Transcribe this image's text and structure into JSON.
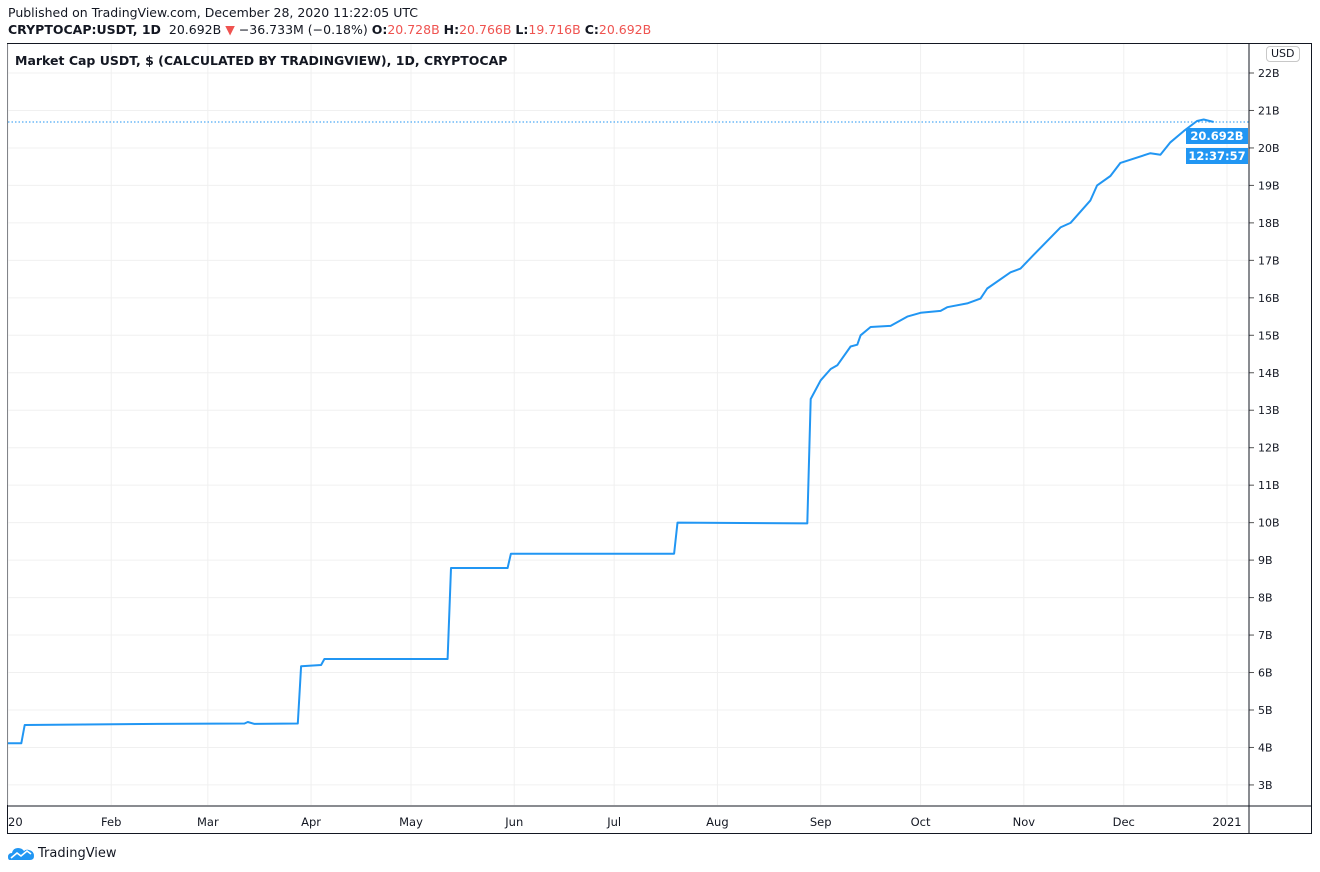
{
  "header": {
    "published": "Published on TradingView.com, December 28, 2020 11:22:05 UTC",
    "symbol": "CRYPTOCAP:USDT, 1D",
    "last": "20.692B",
    "change": "−36.733M (−0.18%)",
    "o_label": "O:",
    "o": "20.728B",
    "h_label": "H:",
    "h": "20.766B",
    "l_label": "L:",
    "l": "19.716B",
    "c_label": "C:",
    "c": "20.692B",
    "direction_icon": "triangle-down-icon"
  },
  "chart": {
    "title": "Market Cap USDT, $ (CALCULATED BY TRADINGVIEW), 1D, CRYPTOCAP",
    "currency_button": "USD",
    "price_label": "20.692B",
    "countdown_label": "12:37:57"
  },
  "footer": {
    "brand": "TradingView"
  },
  "colors": {
    "line": "#2196f3",
    "grid": "#f0f3fa",
    "down": "#ef5350"
  },
  "chart_data": {
    "type": "line",
    "title": "Market Cap USDT, $ (CALCULATED BY TRADINGVIEW), 1D, CRYPTOCAP",
    "ylim": [
      2.5,
      22.5
    ],
    "y_unit": "B",
    "y_ticks": [
      "3B",
      "4B",
      "5B",
      "6B",
      "7B",
      "8B",
      "9B",
      "10B",
      "11B",
      "12B",
      "13B",
      "14B",
      "15B",
      "16B",
      "17B",
      "18B",
      "19B",
      "20B",
      "21B",
      "22B"
    ],
    "x_ticks": [
      {
        "date": "2020-01-01",
        "label": "20"
      },
      {
        "date": "2020-02-01",
        "label": "Feb"
      },
      {
        "date": "2020-03-01",
        "label": "Mar"
      },
      {
        "date": "2020-04-01",
        "label": "Apr"
      },
      {
        "date": "2020-05-01",
        "label": "May"
      },
      {
        "date": "2020-06-01",
        "label": "Jun"
      },
      {
        "date": "2020-07-01",
        "label": "Jul"
      },
      {
        "date": "2020-08-01",
        "label": "Aug"
      },
      {
        "date": "2020-09-01",
        "label": "Sep"
      },
      {
        "date": "2020-10-01",
        "label": "Oct"
      },
      {
        "date": "2020-11-01",
        "label": "Nov"
      },
      {
        "date": "2020-12-01",
        "label": "Dec"
      },
      {
        "date": "2021-01-01",
        "label": "2021"
      }
    ],
    "grid": true,
    "series": [
      {
        "points": [
          [
            "2020-01-01",
            4.11
          ],
          [
            "2020-01-05",
            4.11
          ],
          [
            "2020-01-06",
            4.6
          ],
          [
            "2020-02-15",
            4.63
          ],
          [
            "2020-03-12",
            4.64
          ],
          [
            "2020-03-13",
            4.68
          ],
          [
            "2020-03-15",
            4.63
          ],
          [
            "2020-03-28",
            4.64
          ],
          [
            "2020-03-29",
            6.17
          ],
          [
            "2020-04-04",
            6.2
          ],
          [
            "2020-04-05",
            6.36
          ],
          [
            "2020-05-12",
            6.36
          ],
          [
            "2020-05-13",
            8.79
          ],
          [
            "2020-05-30",
            8.79
          ],
          [
            "2020-05-31",
            9.17
          ],
          [
            "2020-07-19",
            9.17
          ],
          [
            "2020-07-20",
            10.0
          ],
          [
            "2020-08-28",
            9.98
          ],
          [
            "2020-08-29",
            13.3
          ],
          [
            "2020-09-01",
            13.8
          ],
          [
            "2020-09-04",
            14.1
          ],
          [
            "2020-09-06",
            14.2
          ],
          [
            "2020-09-10",
            14.7
          ],
          [
            "2020-09-12",
            14.75
          ],
          [
            "2020-09-13",
            15.0
          ],
          [
            "2020-09-16",
            15.22
          ],
          [
            "2020-09-22",
            15.25
          ],
          [
            "2020-09-27",
            15.5
          ],
          [
            "2020-10-01",
            15.6
          ],
          [
            "2020-10-07",
            15.65
          ],
          [
            "2020-10-09",
            15.75
          ],
          [
            "2020-10-15",
            15.85
          ],
          [
            "2020-10-19",
            15.98
          ],
          [
            "2020-10-21",
            16.25
          ],
          [
            "2020-10-28",
            16.68
          ],
          [
            "2020-10-31",
            16.78
          ],
          [
            "2020-11-04",
            17.15
          ],
          [
            "2020-11-12",
            17.88
          ],
          [
            "2020-11-15",
            18.0
          ],
          [
            "2020-11-21",
            18.6
          ],
          [
            "2020-11-23",
            19.0
          ],
          [
            "2020-11-27",
            19.25
          ],
          [
            "2020-11-30",
            19.6
          ],
          [
            "2020-12-09",
            19.86
          ],
          [
            "2020-12-12",
            19.82
          ],
          [
            "2020-12-15",
            20.15
          ],
          [
            "2020-12-19",
            20.45
          ],
          [
            "2020-12-23",
            20.72
          ],
          [
            "2020-12-25",
            20.76
          ],
          [
            "2020-12-28",
            20.692
          ]
        ]
      }
    ],
    "last_value": 20.692
  }
}
